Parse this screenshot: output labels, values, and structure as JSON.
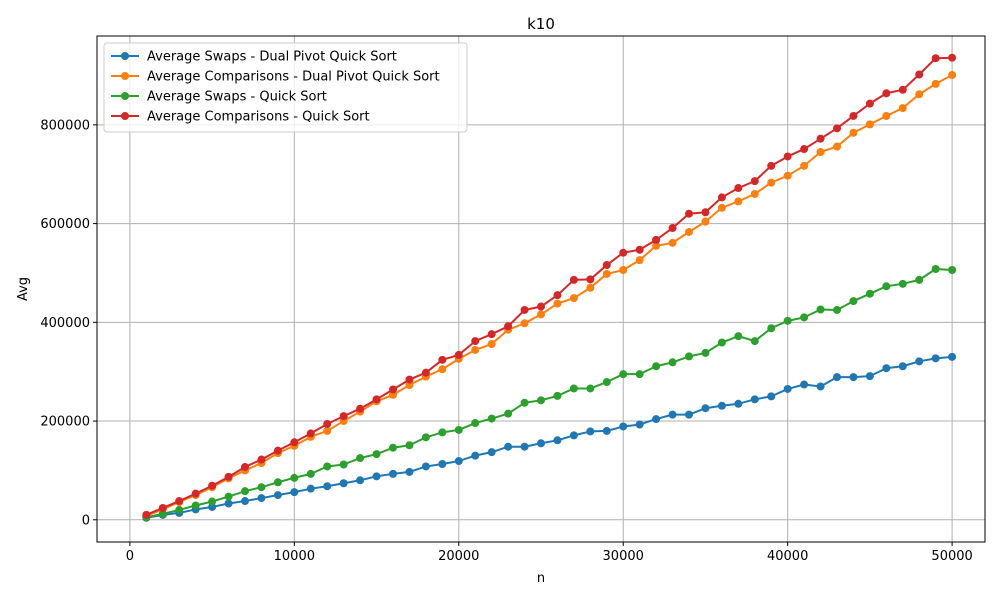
{
  "chart_data": {
    "type": "line",
    "title": "k10",
    "xlabel": "n",
    "ylabel": "Avg",
    "x": [
      1000,
      2000,
      3000,
      4000,
      5000,
      6000,
      7000,
      8000,
      9000,
      10000,
      11000,
      12000,
      13000,
      14000,
      15000,
      16000,
      17000,
      18000,
      19000,
      20000,
      21000,
      22000,
      23000,
      24000,
      25000,
      26000,
      27000,
      28000,
      29000,
      30000,
      31000,
      32000,
      33000,
      34000,
      35000,
      36000,
      37000,
      38000,
      39000,
      40000,
      41000,
      42000,
      43000,
      44000,
      45000,
      46000,
      47000,
      48000,
      49000,
      50000
    ],
    "xlim": [
      -2000,
      52000
    ],
    "ylim": [
      -45000,
      980000
    ],
    "xticks": [
      0,
      10000,
      20000,
      30000,
      40000,
      50000
    ],
    "yticks": [
      0,
      200000,
      400000,
      600000,
      800000
    ],
    "grid": true,
    "legend_position": "top-left",
    "series": [
      {
        "name": "Average Swaps - Dual Pivot Quick Sort",
        "color": "#1f77b4",
        "values": [
          4000,
          10000,
          14000,
          21000,
          26000,
          33000,
          38000,
          44000,
          50000,
          56000,
          63000,
          68000,
          74000,
          80000,
          88000,
          93000,
          97000,
          108000,
          113000,
          119000,
          130000,
          137000,
          148000,
          148000,
          155000,
          161000,
          171000,
          179000,
          180000,
          189000,
          193000,
          204000,
          213000,
          213000,
          226000,
          231000,
          235000,
          244000,
          250000,
          265000,
          274000,
          270000,
          289000,
          289000,
          291000,
          307000,
          311000,
          321000,
          327000,
          330000
        ]
      },
      {
        "name": "Average Comparisons - Dual Pivot Quick Sort",
        "color": "#ff7f0e",
        "values": [
          8000,
          21000,
          36000,
          50000,
          66000,
          84000,
          100000,
          115000,
          135000,
          150000,
          168000,
          180000,
          200000,
          219000,
          240000,
          253000,
          273000,
          290000,
          305000,
          326000,
          344000,
          356000,
          385000,
          398000,
          416000,
          438000,
          449000,
          470000,
          498000,
          506000,
          526000,
          555000,
          561000,
          583000,
          604000,
          632000,
          645000,
          660000,
          683000,
          697000,
          717000,
          745000,
          756000,
          784000,
          801000,
          818000,
          834000,
          862000,
          883000,
          901000
        ]
      },
      {
        "name": "Average Swaps - Quick Sort",
        "color": "#2ca02c",
        "values": [
          5000,
          12000,
          20000,
          29000,
          37000,
          47000,
          58000,
          66000,
          76000,
          85000,
          93000,
          108000,
          112000,
          125000,
          133000,
          146000,
          151000,
          167000,
          177000,
          182000,
          196000,
          205000,
          215000,
          237000,
          242000,
          251000,
          266000,
          266000,
          279000,
          295000,
          295000,
          311000,
          319000,
          331000,
          338000,
          359000,
          372000,
          362000,
          388000,
          403000,
          410000,
          426000,
          425000,
          443000,
          458000,
          473000,
          478000,
          486000,
          508000,
          506000
        ]
      },
      {
        "name": "Average Comparisons - Quick Sort",
        "color": "#d62728",
        "values": [
          10000,
          24000,
          38000,
          53000,
          69000,
          87000,
          107000,
          122000,
          140000,
          157000,
          175000,
          194000,
          210000,
          225000,
          244000,
          264000,
          284000,
          298000,
          324000,
          334000,
          362000,
          376000,
          392000,
          425000,
          432000,
          455000,
          486000,
          487000,
          516000,
          541000,
          547000,
          567000,
          591000,
          620000,
          623000,
          653000,
          672000,
          686000,
          717000,
          736000,
          751000,
          772000,
          793000,
          818000,
          843000,
          864000,
          871000,
          902000,
          935000,
          936000
        ]
      }
    ]
  }
}
